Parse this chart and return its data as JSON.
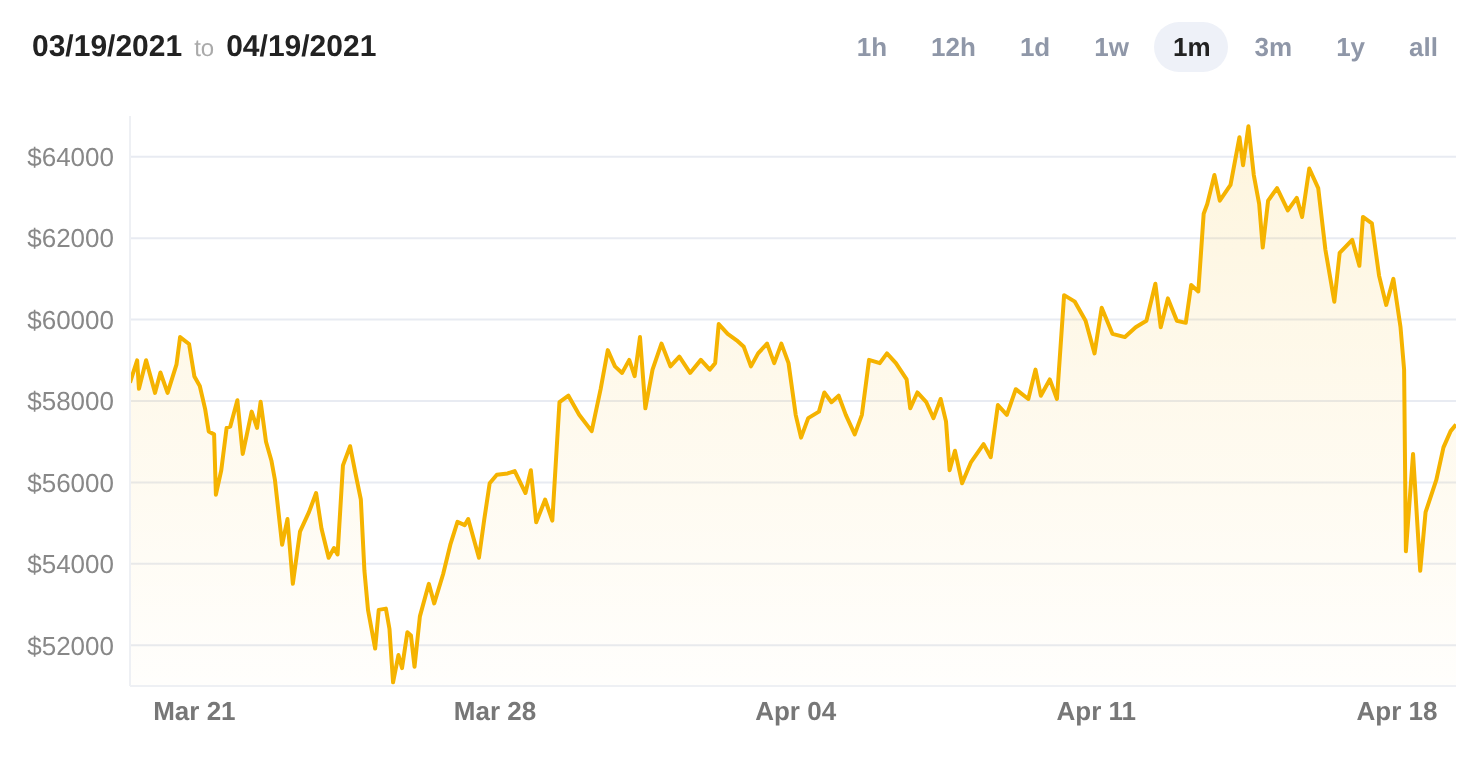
{
  "chart_data": {
    "type": "area",
    "title": "03/19/2021 to 04/19/2021",
    "annotations": [
      "1h",
      "12h",
      "1d",
      "1w",
      "1m",
      "3m",
      "1y",
      "all"
    ],
    "color": "#f5b300",
    "grid": "y",
    "xlim": [
      "2021-03-19T12:00",
      "2021-04-19T09:00"
    ],
    "xticks": [
      {
        "value": "2021-03-21",
        "label": "Mar 21"
      },
      {
        "value": "2021-03-28",
        "label": "Mar 28"
      },
      {
        "value": "2021-04-04",
        "label": "Apr 04"
      },
      {
        "value": "2021-04-11",
        "label": "Apr 11"
      },
      {
        "value": "2021-04-18",
        "label": "Apr 18"
      }
    ],
    "ylim": [
      51000,
      65000
    ],
    "yticks": [
      {
        "value": 52000,
        "label": "$52000"
      },
      {
        "value": 54000,
        "label": "$54000"
      },
      {
        "value": 56000,
        "label": "$56000"
      },
      {
        "value": 58000,
        "label": "$58000"
      },
      {
        "value": 60000,
        "label": "$60000"
      },
      {
        "value": 62000,
        "label": "$62000"
      },
      {
        "value": 64000,
        "label": "$64000"
      }
    ],
    "x": [
      "2021-03-19T12:00",
      "2021-03-19T16:00",
      "2021-03-19T17:00",
      "2021-03-19T21:00",
      "2021-03-20T02:00",
      "2021-03-20T05:00",
      "2021-03-20T09:00",
      "2021-03-20T14:00",
      "2021-03-20T16:00",
      "2021-03-20T21:00",
      "2021-03-21T00:00",
      "2021-03-21T03:00",
      "2021-03-21T06:00",
      "2021-03-21T08:00",
      "2021-03-21T11:00",
      "2021-03-21T12:00",
      "2021-03-21T15:00",
      "2021-03-21T18:00",
      "2021-03-21T20:00",
      "2021-03-22T00:00",
      "2021-03-22T03:00",
      "2021-03-22T08:00",
      "2021-03-22T11:00",
      "2021-03-22T13:00",
      "2021-03-22T16:00",
      "2021-03-22T19:00",
      "2021-03-22T21:00",
      "2021-03-23T01:00",
      "2021-03-23T04:00",
      "2021-03-23T07:00",
      "2021-03-23T11:00",
      "2021-03-23T16:00",
      "2021-03-23T20:00",
      "2021-03-23T23:00",
      "2021-03-24T03:00",
      "2021-03-24T06:00",
      "2021-03-24T08:00",
      "2021-03-24T11:00",
      "2021-03-24T15:00",
      "2021-03-24T18:00",
      "2021-03-24T21:00",
      "2021-03-24T23:00",
      "2021-03-25T01:00",
      "2021-03-25T05:00",
      "2021-03-25T07:00",
      "2021-03-25T11:00",
      "2021-03-25T13:00",
      "2021-03-25T15:00",
      "2021-03-25T18:00",
      "2021-03-25T20:00",
      "2021-03-25T23:00",
      "2021-03-26T01:00",
      "2021-03-26T03:00",
      "2021-03-26T06:00",
      "2021-03-26T11:00",
      "2021-03-26T14:00",
      "2021-03-26T19:00",
      "2021-03-26T23:00",
      "2021-03-27T03:00",
      "2021-03-27T07:00",
      "2021-03-27T09:00",
      "2021-03-27T15:00",
      "2021-03-27T18:00",
      "2021-03-27T21:00",
      "2021-03-28T01:00",
      "2021-03-28T07:00",
      "2021-03-28T11:00",
      "2021-03-28T17:00",
      "2021-03-28T20:00",
      "2021-03-28T23:00",
      "2021-03-29T04:00",
      "2021-03-29T08:00",
      "2021-03-29T12:00",
      "2021-03-29T17:00",
      "2021-03-29T23:00",
      "2021-03-30T06:00",
      "2021-03-30T11:00",
      "2021-03-30T15:00",
      "2021-03-30T19:00",
      "2021-03-30T23:00",
      "2021-03-31T03:00",
      "2021-03-31T06:00",
      "2021-03-31T09:00",
      "2021-03-31T12:00",
      "2021-03-31T16:00",
      "2021-03-31T21:00",
      "2021-04-01T02:00",
      "2021-04-01T07:00",
      "2021-04-01T13:00",
      "2021-04-01T19:00",
      "2021-04-02T00:00",
      "2021-04-02T03:00",
      "2021-04-02T05:00",
      "2021-04-02T10:00",
      "2021-04-02T15:00",
      "2021-04-02T19:00",
      "2021-04-02T23:00",
      "2021-04-03T03:00",
      "2021-04-03T08:00",
      "2021-04-03T12:00",
      "2021-04-03T16:00",
      "2021-04-03T20:00",
      "2021-04-04T00:00",
      "2021-04-04T03:00",
      "2021-04-04T07:00",
      "2021-04-04T13:00",
      "2021-04-04T16:00",
      "2021-04-04T20:00",
      "2021-04-05T00:00",
      "2021-04-05T04:00",
      "2021-04-05T09:00",
      "2021-04-05T13:00",
      "2021-04-05T17:00",
      "2021-04-05T23:00",
      "2021-04-06T03:00",
      "2021-04-06T08:00",
      "2021-04-06T14:00",
      "2021-04-06T16:00",
      "2021-04-06T20:00",
      "2021-04-07T01:00",
      "2021-04-07T05:00",
      "2021-04-07T09:00",
      "2021-04-07T12:00",
      "2021-04-07T14:00",
      "2021-04-07T17:00",
      "2021-04-07T21:00",
      "2021-04-08T02:00",
      "2021-04-08T09:00",
      "2021-04-08T13:00",
      "2021-04-08T17:00",
      "2021-04-08T22:00",
      "2021-04-09T03:00",
      "2021-04-09T10:00",
      "2021-04-09T14:00",
      "2021-04-09T17:00",
      "2021-04-09T22:00",
      "2021-04-10T02:00",
      "2021-04-10T06:00",
      "2021-04-10T12:00",
      "2021-04-10T18:00",
      "2021-04-10T23:00",
      "2021-04-11T03:00",
      "2021-04-11T09:00",
      "2021-04-11T16:00",
      "2021-04-11T22:00",
      "2021-04-12T04:00",
      "2021-04-12T09:00",
      "2021-04-12T12:00",
      "2021-04-12T16:00",
      "2021-04-12T21:00",
      "2021-04-13T02:00",
      "2021-04-13T05:00",
      "2021-04-13T09:00",
      "2021-04-13T12:00",
      "2021-04-13T14:00",
      "2021-04-13T18:00",
      "2021-04-13T21:00",
      "2021-04-14T03:00",
      "2021-04-14T08:00",
      "2021-04-14T10:00",
      "2021-04-14T13:00",
      "2021-04-14T16:00",
      "2021-04-14T19:00",
      "2021-04-14T21:00",
      "2021-04-15T00:00",
      "2021-04-15T05:00",
      "2021-04-15T11:00",
      "2021-04-15T16:00",
      "2021-04-15T19:00",
      "2021-04-15T23:00",
      "2021-04-16T04:00",
      "2021-04-16T08:00",
      "2021-04-16T13:00",
      "2021-04-16T16:00",
      "2021-04-16T23:00",
      "2021-04-17T03:00",
      "2021-04-17T05:00",
      "2021-04-17T10:00",
      "2021-04-17T14:00",
      "2021-04-17T18:00",
      "2021-04-17T22:00",
      "2021-04-18T02:00",
      "2021-04-18T04:00",
      "2021-04-18T05:00",
      "2021-04-18T09:00",
      "2021-04-18T13:00",
      "2021-04-18T16:00",
      "2021-04-18T22:00",
      "2021-04-19T02:00",
      "2021-04-19T06:00",
      "2021-04-19T09:00"
    ],
    "values": [
      58450,
      59000,
      58300,
      59000,
      58200,
      58700,
      58200,
      58900,
      59570,
      59400,
      58600,
      58370,
      57800,
      57250,
      57180,
      55700,
      56300,
      57340,
      57370,
      58020,
      56700,
      57740,
      57340,
      57980,
      57000,
      56540,
      56060,
      54470,
      55100,
      53510,
      54790,
      55270,
      55740,
      54870,
      54150,
      54390,
      54230,
      56420,
      56890,
      56220,
      55580,
      53830,
      52870,
      51920,
      52870,
      52900,
      52400,
      51090,
      51760,
      51440,
      52320,
      52240,
      51470,
      52710,
      53510,
      53030,
      53750,
      54470,
      55030,
      54950,
      55100,
      54150,
      55100,
      55980,
      56190,
      56220,
      56280,
      55740,
      56300,
      55020,
      55580,
      55060,
      57970,
      58130,
      57660,
      57260,
      58290,
      59250,
      58850,
      58690,
      59010,
      58610,
      59570,
      57820,
      58770,
      59410,
      58850,
      59090,
      58690,
      59010,
      58770,
      58930,
      59890,
      59650,
      59490,
      59330,
      58850,
      59170,
      59410,
      58930,
      59410,
      58930,
      57660,
      57100,
      57580,
      57740,
      58210,
      57970,
      58130,
      57660,
      57180,
      57660,
      59010,
      58930,
      59170,
      58930,
      58530,
      57820,
      58210,
      57970,
      57580,
      58050,
      57500,
      56300,
      56780,
      55980,
      56500,
      56940,
      56620,
      57900,
      57660,
      58290,
      58050,
      58770,
      58130,
      58530,
      58050,
      60600,
      60440,
      59970,
      59170,
      60290,
      59650,
      59570,
      59810,
      59970,
      60880,
      59810,
      60520,
      59970,
      59920,
      60850,
      60690,
      62600,
      62840,
      63550,
      62920,
      63310,
      64480,
      63790,
      64750,
      63550,
      62840,
      61770,
      62920,
      63230,
      62680,
      62990,
      62520,
      63710,
      63230,
      61720,
      60440,
      61640,
      61960,
      61320,
      62520,
      62360,
      61080,
      60360,
      61000,
      59810,
      58770,
      54310,
      56700,
      53830,
      55270,
      56060,
      56860,
      57260,
      57420
    ]
  }
}
